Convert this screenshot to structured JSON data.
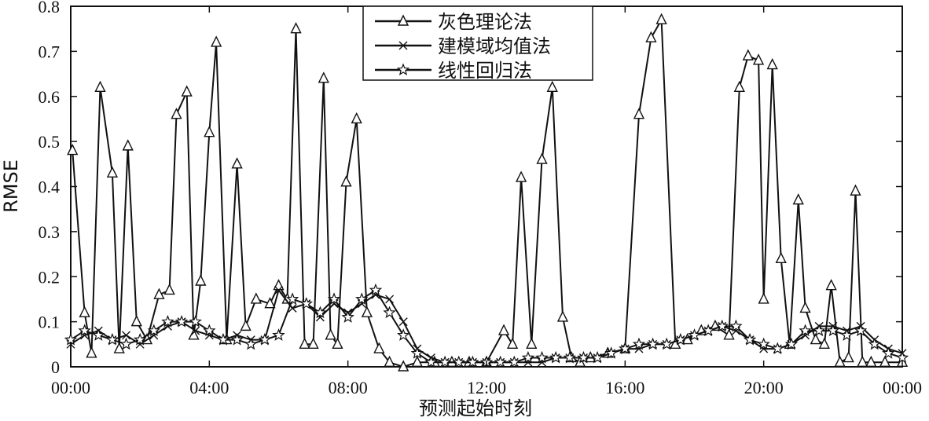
{
  "chart_data": {
    "type": "line",
    "xlabel": "预测起始时刻",
    "ylabel": "RMSE",
    "xlim": [
      0,
      24
    ],
    "ylim": [
      0,
      0.8
    ],
    "x_ticks": [
      0,
      4,
      8,
      12,
      16,
      20,
      24
    ],
    "x_tick_labels": [
      "00:00",
      "04:00",
      "08:00",
      "12:00",
      "16:00",
      "20:00",
      "00:00"
    ],
    "y_ticks": [
      0,
      0.1,
      0.2,
      0.3,
      0.4,
      0.5,
      0.6,
      0.7,
      0.8
    ],
    "y_tick_labels": [
      "0",
      "0.1",
      "0.2",
      "0.3",
      "0.4",
      "0.5",
      "0.6",
      "0.7",
      "0.8"
    ],
    "grid": false,
    "legend_position": "top-center",
    "series": [
      {
        "name": "灰色理论法",
        "marker": "triangle",
        "x": [
          0.05,
          0.4,
          0.6,
          0.85,
          1.2,
          1.4,
          1.65,
          1.9,
          2.2,
          2.55,
          2.85,
          3.05,
          3.35,
          3.55,
          3.75,
          4.0,
          4.2,
          4.5,
          4.8,
          5.05,
          5.35,
          5.75,
          6.0,
          6.25,
          6.5,
          6.75,
          7.0,
          7.3,
          7.5,
          7.7,
          7.95,
          8.25,
          8.55,
          8.9,
          9.2,
          9.6,
          10.0,
          10.5,
          11.0,
          11.5,
          12.0,
          12.5,
          12.75,
          13.0,
          13.3,
          13.6,
          13.9,
          14.2,
          14.45,
          14.7,
          15.0,
          15.5,
          16.0,
          16.4,
          16.75,
          17.05,
          17.45,
          17.8,
          18.2,
          18.6,
          19.0,
          19.3,
          19.55,
          19.85,
          20.0,
          20.25,
          20.5,
          20.75,
          21.0,
          21.2,
          21.5,
          21.75,
          21.95,
          22.2,
          22.45,
          22.65,
          22.85,
          23.1,
          23.5,
          24.0
        ],
        "y": [
          0.48,
          0.12,
          0.03,
          0.62,
          0.43,
          0.04,
          0.49,
          0.1,
          0.06,
          0.16,
          0.17,
          0.56,
          0.61,
          0.07,
          0.19,
          0.52,
          0.72,
          0.06,
          0.45,
          0.09,
          0.15,
          0.14,
          0.18,
          0.15,
          0.75,
          0.05,
          0.05,
          0.64,
          0.07,
          0.05,
          0.41,
          0.55,
          0.12,
          0.04,
          0.01,
          0.0,
          0.01,
          0.01,
          0.01,
          0.01,
          0.01,
          0.08,
          0.05,
          0.42,
          0.05,
          0.46,
          0.62,
          0.11,
          0.02,
          0.01,
          0.02,
          0.03,
          0.04,
          0.56,
          0.73,
          0.77,
          0.05,
          0.06,
          0.08,
          0.09,
          0.07,
          0.62,
          0.69,
          0.68,
          0.15,
          0.67,
          0.24,
          0.05,
          0.37,
          0.13,
          0.06,
          0.05,
          0.18,
          0.01,
          0.02,
          0.39,
          0.01,
          0.01,
          0.01,
          0.01
        ]
      },
      {
        "name": "建模域均值法",
        "marker": "x",
        "x": [
          0.0,
          0.4,
          0.8,
          1.2,
          1.6,
          2.0,
          2.4,
          2.8,
          3.2,
          3.6,
          4.0,
          4.4,
          4.8,
          5.2,
          5.6,
          6.0,
          6.4,
          6.8,
          7.2,
          7.6,
          8.0,
          8.4,
          8.8,
          9.2,
          9.6,
          10.0,
          10.4,
          10.8,
          11.2,
          11.6,
          12.0,
          12.4,
          12.8,
          13.2,
          13.6,
          14.0,
          14.4,
          14.8,
          15.2,
          15.6,
          16.0,
          16.4,
          16.8,
          17.2,
          17.6,
          18.0,
          18.4,
          18.8,
          19.2,
          19.6,
          20.0,
          20.4,
          20.8,
          21.2,
          21.6,
          22.0,
          22.4,
          22.8,
          23.2,
          23.6,
          24.0
        ],
        "y": [
          0.05,
          0.07,
          0.08,
          0.06,
          0.07,
          0.05,
          0.07,
          0.09,
          0.1,
          0.08,
          0.07,
          0.06,
          0.07,
          0.06,
          0.06,
          0.17,
          0.13,
          0.14,
          0.11,
          0.14,
          0.12,
          0.14,
          0.16,
          0.15,
          0.1,
          0.04,
          0.02,
          0.01,
          0.01,
          0.01,
          0.01,
          0.01,
          0.01,
          0.01,
          0.01,
          0.02,
          0.02,
          0.02,
          0.02,
          0.03,
          0.04,
          0.04,
          0.05,
          0.05,
          0.06,
          0.07,
          0.08,
          0.09,
          0.08,
          0.06,
          0.04,
          0.04,
          0.05,
          0.07,
          0.09,
          0.09,
          0.08,
          0.09,
          0.06,
          0.04,
          0.03
        ]
      },
      {
        "name": "线性回归法",
        "marker": "star",
        "x": [
          0.0,
          0.4,
          0.8,
          1.2,
          1.6,
          2.0,
          2.4,
          2.8,
          3.2,
          3.6,
          4.0,
          4.4,
          4.8,
          5.2,
          5.6,
          6.0,
          6.4,
          6.8,
          7.2,
          7.6,
          8.0,
          8.4,
          8.8,
          9.2,
          9.6,
          10.0,
          10.4,
          10.8,
          11.2,
          11.6,
          12.0,
          12.4,
          12.8,
          13.2,
          13.6,
          14.0,
          14.4,
          14.8,
          15.2,
          15.6,
          16.0,
          16.4,
          16.8,
          17.2,
          17.6,
          18.0,
          18.4,
          18.8,
          19.2,
          19.6,
          20.0,
          20.4,
          20.8,
          21.2,
          21.6,
          22.0,
          22.4,
          22.8,
          23.2,
          23.6,
          24.0
        ],
        "y": [
          0.06,
          0.08,
          0.07,
          0.06,
          0.05,
          0.06,
          0.08,
          0.1,
          0.1,
          0.1,
          0.08,
          0.06,
          0.06,
          0.05,
          0.06,
          0.07,
          0.15,
          0.14,
          0.12,
          0.15,
          0.11,
          0.15,
          0.17,
          0.12,
          0.07,
          0.03,
          0.01,
          0.01,
          0.01,
          0.01,
          0.01,
          0.01,
          0.01,
          0.02,
          0.02,
          0.02,
          0.02,
          0.02,
          0.02,
          0.03,
          0.04,
          0.05,
          0.05,
          0.05,
          0.06,
          0.07,
          0.08,
          0.09,
          0.09,
          0.06,
          0.05,
          0.04,
          0.05,
          0.08,
          0.08,
          0.08,
          0.07,
          0.08,
          0.05,
          0.03,
          0.02
        ]
      }
    ]
  }
}
